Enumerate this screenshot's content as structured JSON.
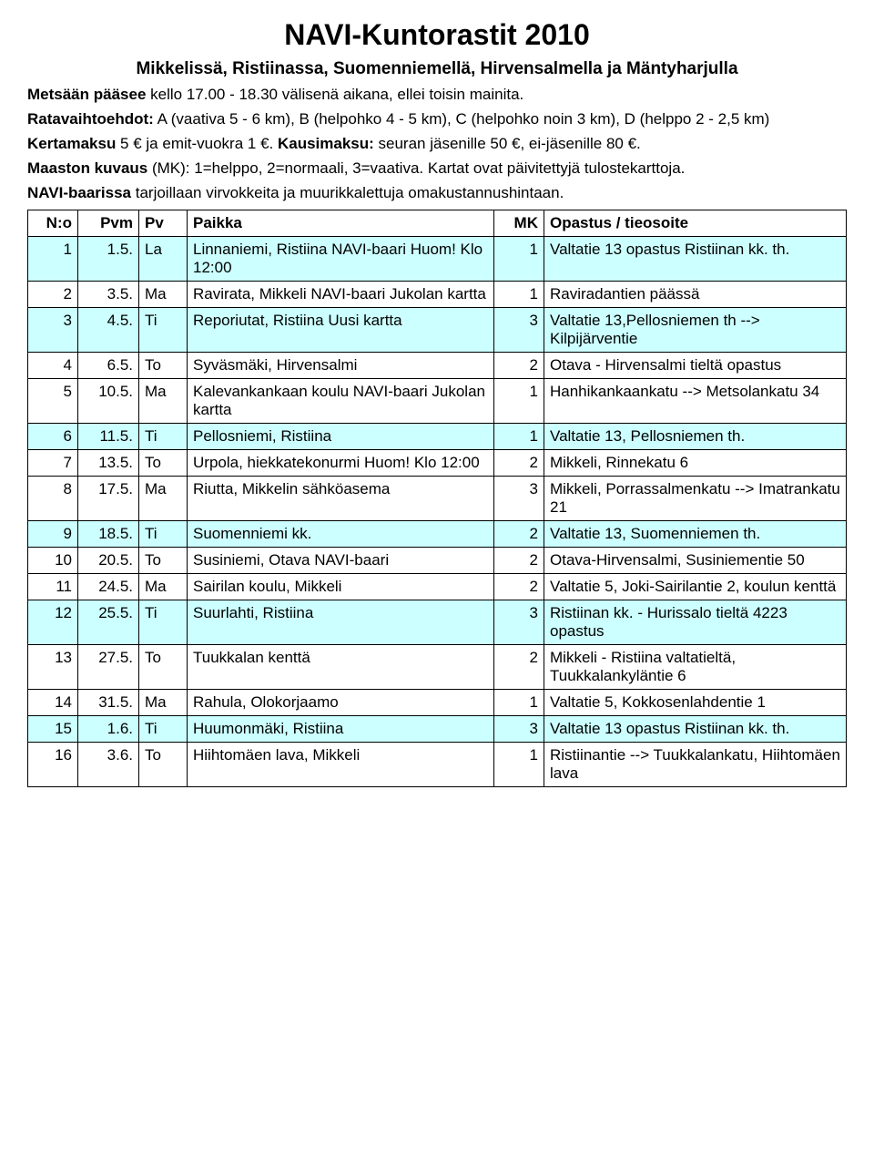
{
  "title": "NAVI-Kuntorastit 2010",
  "subtitle": "Mikkelissä, Ristiinassa, Suomenniemellä, Hirvensalmella ja Mäntyharjulla",
  "intro_lines": [
    {
      "bold": "Metsään pääsee",
      "rest": " kello 17.00 - 18.30 välisenä aikana, ellei toisin mainita."
    },
    {
      "bold": "Ratavaihtoehdot:",
      "rest": " A (vaativa 5 - 6 km), B (helpohko 4 - 5 km), C (helpohko noin 3 km), D (helppo 2 - 2,5 km)"
    },
    {
      "bold": "Kertamaksu",
      "rest": " 5 € ja emit-vuokra 1 €. ",
      "bold2": "Kausimaksu:",
      "rest2": " seuran jäsenille 50 €, ei-jäsenille 80 €."
    },
    {
      "bold": "Maaston kuvaus",
      "rest": " (MK): 1=helppo, 2=normaali, 3=vaativa. Kartat ovat päivitettyjä tulostekarttoja."
    },
    {
      "bold": "NAVI-baarissa",
      "rest": " tarjoillaan virvokkeita ja muurikkalettuja omakustannushintaan."
    }
  ],
  "headers": {
    "no": "N:o",
    "pvm": "Pvm",
    "pv": "Pv",
    "paikka": "Paikka",
    "mk": "MK",
    "opastus": "Opastus / tieosoite"
  },
  "rows": [
    {
      "no": "1",
      "pvm": "1.5.",
      "pv": "La",
      "paikka": "Linnaniemi, Ristiina  NAVI-baari Huom!  Klo 12:00",
      "mk": "1",
      "opastus": "Valtatie 13 opastus Ristiinan kk. th.",
      "hl": true
    },
    {
      "no": "2",
      "pvm": "3.5.",
      "pv": "Ma",
      "paikka": "Ravirata, Mikkeli  NAVI-baari Jukolan kartta",
      "mk": "1",
      "opastus": "Raviradantien päässä",
      "hl": false
    },
    {
      "no": "3",
      "pvm": "4.5.",
      "pv": "Ti",
      "paikka": "Reporiutat, Ristiina  Uusi kartta",
      "mk": "3",
      "opastus": "Valtatie 13,Pellosniemen th --> Kilpijärventie",
      "hl": true
    },
    {
      "no": "4",
      "pvm": "6.5.",
      "pv": "To",
      "paikka": "Syväsmäki, Hirvensalmi",
      "mk": "2",
      "opastus": "Otava - Hirvensalmi tieltä opastus",
      "hl": false
    },
    {
      "no": "5",
      "pvm": "10.5.",
      "pv": "Ma",
      "paikka": "Kalevankankaan koulu NAVI-baari Jukolan kartta",
      "mk": "1",
      "opastus": "Hanhikankaankatu --> Metsolankatu 34",
      "hl": false
    },
    {
      "no": "6",
      "pvm": "11.5.",
      "pv": "Ti",
      "paikka": "Pellosniemi, Ristiina",
      "mk": "1",
      "opastus": "Valtatie 13, Pellosniemen th.",
      "hl": true
    },
    {
      "no": "7",
      "pvm": "13.5.",
      "pv": "To",
      "paikka": "Urpola, hiekkatekonurmi Huom!  Klo 12:00",
      "mk": "2",
      "opastus": "Mikkeli, Rinnekatu 6",
      "hl": false
    },
    {
      "no": "8",
      "pvm": "17.5.",
      "pv": "Ma",
      "paikka": "Riutta, Mikkelin sähköasema",
      "mk": "3",
      "opastus": "Mikkeli, Porrassalmenkatu --> Imatrankatu 21",
      "hl": false
    },
    {
      "no": "9",
      "pvm": "18.5.",
      "pv": "Ti",
      "paikka": "Suomenniemi kk.",
      "mk": "2",
      "opastus": "Valtatie 13, Suomenniemen th.",
      "hl": true
    },
    {
      "no": "10",
      "pvm": "20.5.",
      "pv": "To",
      "paikka": "Susiniemi, Otava NAVI-baari",
      "mk": "2",
      "opastus": "Otava-Hirvensalmi, Susiniementie 50",
      "hl": false
    },
    {
      "no": "11",
      "pvm": "24.5.",
      "pv": "Ma",
      "paikka": "Sairilan koulu, Mikkeli",
      "mk": "2",
      "opastus": "Valtatie 5, Joki-Sairilantie 2, koulun kenttä",
      "hl": false
    },
    {
      "no": "12",
      "pvm": "25.5.",
      "pv": "Ti",
      "paikka": "Suurlahti, Ristiina",
      "mk": "3",
      "opastus": "Ristiinan kk. - Hurissalo tieltä 4223 opastus",
      "hl": true
    },
    {
      "no": "13",
      "pvm": "27.5.",
      "pv": "To",
      "paikka": "Tuukkalan kenttä",
      "mk": "2",
      "opastus": "Mikkeli - Ristiina valtatieltä, Tuukkalankyläntie 6",
      "hl": false
    },
    {
      "no": "14",
      "pvm": "31.5.",
      "pv": "Ma",
      "paikka": "Rahula, Olokorjaamo",
      "mk": "1",
      "opastus": "Valtatie 5, Kokkosenlahdentie 1",
      "hl": false
    },
    {
      "no": "15",
      "pvm": "1.6.",
      "pv": "Ti",
      "paikka": "Huumonmäki, Ristiina",
      "mk": "3",
      "opastus": "Valtatie 13 opastus Ristiinan kk. th.",
      "hl": true
    },
    {
      "no": "16",
      "pvm": "3.6.",
      "pv": "To",
      "paikka": "Hiihtomäen lava, Mikkeli",
      "mk": "1",
      "opastus": "Ristiinantie --> Tuukkalankatu, Hiihtomäen lava",
      "hl": false
    }
  ],
  "highlight_color": "#ccffff"
}
